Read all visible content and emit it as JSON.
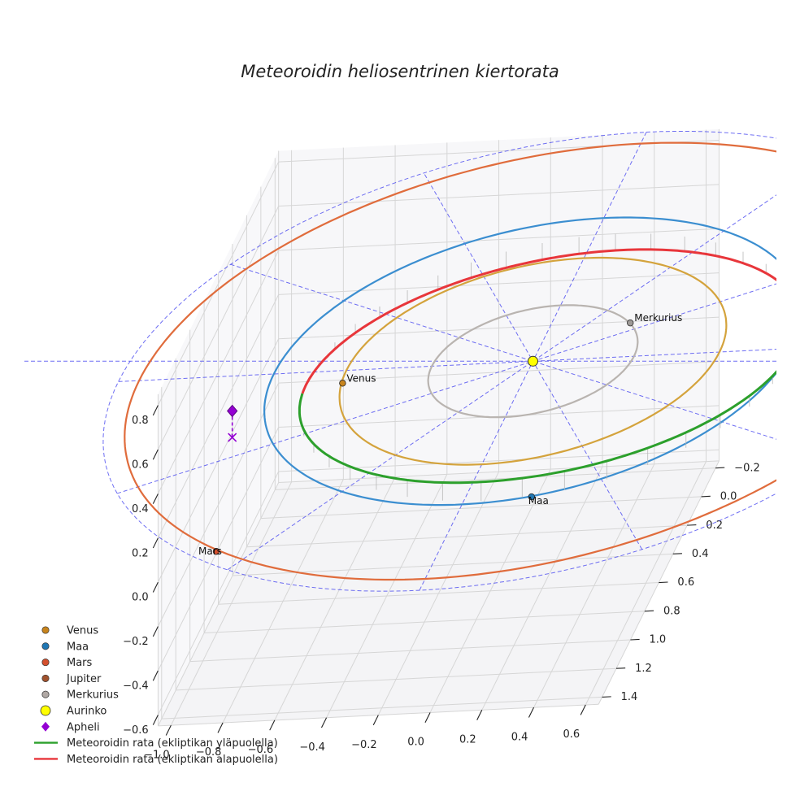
{
  "chart_data": {
    "type": "scatter",
    "title": "Meteoroidin heliosentrinen kiertorata",
    "projection": "3d",
    "grid": true,
    "axes": {
      "x": {
        "ticks": [
          "−1.0",
          "−0.8",
          "−0.6",
          "−0.4",
          "−0.2",
          "0.0",
          "0.2",
          "0.4",
          "0.6"
        ],
        "range": [
          -1.05,
          0.65
        ]
      },
      "y": {
        "ticks": [
          "−0.2",
          "0.0",
          "0.2",
          "0.4",
          "0.6",
          "0.8",
          "1.0",
          "1.2",
          "1.4"
        ],
        "range": [
          -0.25,
          1.45
        ]
      },
      "z": {
        "ticks": [
          "−0.6",
          "−0.4",
          "−0.2",
          "0.0",
          "0.2",
          "0.4",
          "0.6",
          "0.8"
        ],
        "range": [
          -0.65,
          0.85
        ]
      }
    },
    "colors": {
      "venus": "#d4a33c",
      "earth": "#3b8ed0",
      "mars": "#e06c3c",
      "mercury": "#b9b4b0",
      "sun": "#ffff00",
      "aphelion": "#9400d3",
      "above": "#2ca02c",
      "below": "#e8363b",
      "grid": "#d6d6d6",
      "reference": "#4a4af0"
    },
    "orbits": [
      {
        "name": "Venus",
        "radius_au": 0.72
      },
      {
        "name": "Maa",
        "radius_au": 1.0
      },
      {
        "name": "Mars",
        "radius_au": 1.52
      },
      {
        "name": "Merkurius",
        "radius_au": 0.39
      }
    ],
    "series": [
      {
        "name": "Venus",
        "type": "point",
        "x": -0.71,
        "y": 0.09,
        "z": 0.0
      },
      {
        "name": "Maa",
        "type": "point",
        "x": 0.26,
        "y": 0.97,
        "z": 0.0
      },
      {
        "name": "Mars",
        "type": "point",
        "x": -0.88,
        "y": 1.25,
        "z": 0.0
      },
      {
        "name": "Merkurius",
        "type": "point",
        "x": 0.31,
        "y": -0.24,
        "z": 0.0
      },
      {
        "name": "Aurinko",
        "type": "point",
        "x": 0.0,
        "y": 0.0,
        "z": 0.0
      },
      {
        "name": "Apheli",
        "type": "point",
        "x": -1.04,
        "y": 0.44,
        "z": 0.12
      }
    ],
    "meteoroid": {
      "a": 0.935,
      "e": 0.1,
      "perihelion_angle_deg": -148,
      "node_angle_deg": -10,
      "inclination_deg": 5
    }
  },
  "legend": {
    "items": [
      {
        "label": "Venus",
        "marker": "circle",
        "color": "#c7841d"
      },
      {
        "label": "Maa",
        "marker": "circle",
        "color": "#1f77b4"
      },
      {
        "label": "Mars",
        "marker": "circle",
        "color": "#d4502d"
      },
      {
        "label": "Jupiter",
        "marker": "circle",
        "color": "#a0522d"
      },
      {
        "label": "Merkurius",
        "marker": "circle",
        "color": "#b0a8a4"
      },
      {
        "label": "Aurinko",
        "marker": "big-circle",
        "color": "#ffff00"
      },
      {
        "label": "Apheli",
        "marker": "diamond",
        "color": "#9400d3"
      },
      {
        "label": "Meteoroidin rata (ekliptikan yläpuolella)",
        "marker": "line",
        "color": "#2ca02c"
      },
      {
        "label": "Meteoroidin rata (ekliptikan alapuolella)",
        "marker": "line",
        "color": "#e8363b"
      }
    ]
  }
}
